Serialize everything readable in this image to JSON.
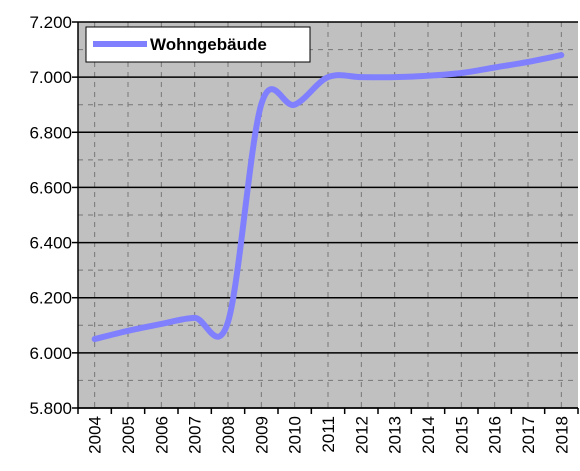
{
  "chart_data": {
    "type": "line",
    "categories": [
      "2004",
      "2005",
      "2006",
      "2007",
      "2008",
      "2009",
      "2010",
      "2011",
      "2012",
      "2013",
      "2014",
      "2015",
      "2016",
      "2017",
      "2018"
    ],
    "series": [
      {
        "name": "Wohngebäude",
        "color": "#8080ff",
        "values": [
          6050,
          6080,
          6105,
          6127,
          6112,
          6902,
          6900,
          7000,
          7000,
          7000,
          7005,
          7015,
          7035,
          7055,
          7080
        ]
      }
    ],
    "ylim": [
      5800,
      7200
    ],
    "yticks": [
      {
        "value": 5800,
        "label": "5.800"
      },
      {
        "value": 6000,
        "label": "6.000"
      },
      {
        "value": 6200,
        "label": "6.200"
      },
      {
        "value": 6400,
        "label": "6.400"
      },
      {
        "value": 6600,
        "label": "6.600"
      },
      {
        "value": 6800,
        "label": "6.800"
      },
      {
        "value": 7000,
        "label": "7.000"
      },
      {
        "value": 7200,
        "label": "7.200"
      }
    ],
    "grid": true,
    "legend": "upper left"
  }
}
